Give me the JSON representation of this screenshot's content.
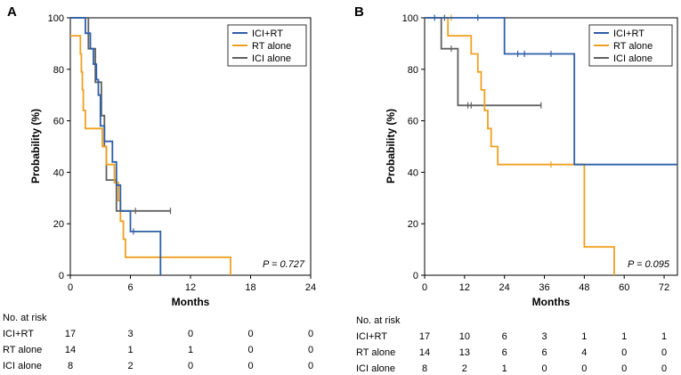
{
  "chart_data": [
    {
      "type": "line",
      "subtype": "kaplan-meier",
      "panel_label": "A",
      "ylabel": "Probability (%)",
      "xlabel": "Months",
      "xlim": [
        0,
        24
      ],
      "ylim": [
        0,
        100
      ],
      "x_ticks": [
        0,
        6,
        12,
        18,
        24
      ],
      "y_ticks": [
        0,
        20,
        40,
        60,
        80,
        100
      ],
      "p_value_prefix": "P = ",
      "p_value": "0.727",
      "legend": [
        "ICI+RT",
        "RT alone",
        "ICI alone"
      ],
      "series": [
        {
          "name": "ICI+RT",
          "color": "#2E5FA8",
          "steps": [
            [
              0,
              100
            ],
            [
              1.5,
              100
            ],
            [
              1.5,
              94
            ],
            [
              2,
              94
            ],
            [
              2,
              88
            ],
            [
              2.3,
              88
            ],
            [
              2.3,
              82
            ],
            [
              2.6,
              82
            ],
            [
              2.6,
              76
            ],
            [
              2.8,
              76
            ],
            [
              2.8,
              70
            ],
            [
              3,
              70
            ],
            [
              3,
              58
            ],
            [
              3.4,
              58
            ],
            [
              3.4,
              52
            ],
            [
              4.2,
              52
            ],
            [
              4.2,
              44
            ],
            [
              4.6,
              44
            ],
            [
              4.6,
              35
            ],
            [
              5,
              35
            ],
            [
              5,
              25
            ],
            [
              6,
              25
            ],
            [
              6,
              17
            ],
            [
              9,
              17
            ],
            [
              9,
              0
            ]
          ],
          "censor": [
            [
              6.3,
              17
            ]
          ]
        },
        {
          "name": "RT alone",
          "color": "#F0A020",
          "steps": [
            [
              0,
              93
            ],
            [
              1,
              93
            ],
            [
              1,
              86
            ],
            [
              1.1,
              86
            ],
            [
              1.1,
              79
            ],
            [
              1.2,
              79
            ],
            [
              1.2,
              72
            ],
            [
              1.3,
              72
            ],
            [
              1.3,
              64
            ],
            [
              1.5,
              64
            ],
            [
              1.5,
              57
            ],
            [
              3.2,
              57
            ],
            [
              3.2,
              50
            ],
            [
              3.6,
              50
            ],
            [
              3.6,
              43
            ],
            [
              4.4,
              43
            ],
            [
              4.4,
              36
            ],
            [
              4.8,
              36
            ],
            [
              4.8,
              29
            ],
            [
              5,
              29
            ],
            [
              5,
              21
            ],
            [
              5.3,
              21
            ],
            [
              5.3,
              14
            ],
            [
              5.5,
              14
            ],
            [
              5.5,
              7
            ],
            [
              16,
              7
            ],
            [
              16,
              0
            ]
          ],
          "censor": []
        },
        {
          "name": "ICI alone",
          "color": "#606060",
          "steps": [
            [
              0,
              100
            ],
            [
              1.8,
              100
            ],
            [
              1.8,
              88
            ],
            [
              2.5,
              88
            ],
            [
              2.5,
              75
            ],
            [
              3.1,
              75
            ],
            [
              3.1,
              62
            ],
            [
              3.4,
              62
            ],
            [
              3.4,
              50
            ],
            [
              3.6,
              50
            ],
            [
              3.6,
              37
            ],
            [
              4.6,
              37
            ],
            [
              4.6,
              25
            ],
            [
              10,
              25
            ]
          ],
          "censor": [
            [
              6.5,
              25
            ],
            [
              10,
              25
            ]
          ]
        }
      ],
      "risk_table": {
        "header": "No. at risk",
        "times": [
          0,
          6,
          12,
          18,
          24
        ],
        "rows": [
          {
            "label": "ICI+RT",
            "values": [
              "17",
              "3",
              "0",
              "0",
              "0"
            ]
          },
          {
            "label": "RT alone",
            "values": [
              "14",
              "1",
              "1",
              "0",
              "0"
            ]
          },
          {
            "label": "ICI alone",
            "values": [
              "8",
              "2",
              "0",
              "0",
              "0"
            ]
          }
        ]
      }
    },
    {
      "type": "line",
      "subtype": "kaplan-meier",
      "panel_label": "B",
      "ylabel": "Probability (%)",
      "xlabel": "Months",
      "xlim": [
        0,
        76
      ],
      "ylim": [
        0,
        100
      ],
      "x_ticks": [
        0,
        12,
        24,
        36,
        48,
        60,
        72
      ],
      "y_ticks": [
        0,
        20,
        40,
        60,
        80,
        100
      ],
      "p_value_prefix": "P = ",
      "p_value": "0.095",
      "legend": [
        "ICI+RT",
        "RT alone",
        "ICI alone"
      ],
      "series": [
        {
          "name": "ICI+RT",
          "color": "#2E5FA8",
          "steps": [
            [
              0,
              100
            ],
            [
              24,
              100
            ],
            [
              24,
              86
            ],
            [
              45,
              86
            ],
            [
              45,
              43
            ],
            [
              76,
              43
            ]
          ],
          "censor": [
            [
              3,
              100
            ],
            [
              16,
              100
            ],
            [
              28,
              86
            ],
            [
              30,
              86
            ],
            [
              38,
              86
            ]
          ]
        },
        {
          "name": "RT alone",
          "color": "#F0A020",
          "steps": [
            [
              0,
              100
            ],
            [
              7,
              100
            ],
            [
              7,
              93
            ],
            [
              14,
              93
            ],
            [
              14,
              86
            ],
            [
              16,
              86
            ],
            [
              16,
              79
            ],
            [
              17,
              79
            ],
            [
              17,
              72
            ],
            [
              18,
              72
            ],
            [
              18,
              64
            ],
            [
              19,
              64
            ],
            [
              19,
              57
            ],
            [
              20,
              57
            ],
            [
              20,
              50
            ],
            [
              22,
              50
            ],
            [
              22,
              43
            ],
            [
              48,
              43
            ],
            [
              48,
              11
            ],
            [
              57,
              11
            ],
            [
              57,
              0
            ]
          ],
          "censor": [
            [
              8,
              100
            ],
            [
              38,
              43
            ]
          ]
        },
        {
          "name": "ICI alone",
          "color": "#606060",
          "steps": [
            [
              0,
              100
            ],
            [
              5,
              100
            ],
            [
              5,
              88
            ],
            [
              10,
              88
            ],
            [
              10,
              66
            ],
            [
              35,
              66
            ]
          ],
          "censor": [
            [
              6,
              100
            ],
            [
              8,
              88
            ],
            [
              13,
              66
            ],
            [
              14,
              66
            ],
            [
              35,
              66
            ]
          ]
        }
      ],
      "risk_table": {
        "header": "No. at risk",
        "times": [
          0,
          12,
          24,
          36,
          48,
          60,
          72
        ],
        "rows": [
          {
            "label": "ICI+RT",
            "values": [
              "17",
              "10",
              "6",
              "3",
              "1",
              "1",
              "1"
            ]
          },
          {
            "label": "RT alone",
            "values": [
              "14",
              "13",
              "6",
              "6",
              "4",
              "0",
              "0"
            ]
          },
          {
            "label": "ICI alone",
            "values": [
              "8",
              "2",
              "1",
              "0",
              "0",
              "0",
              "0"
            ]
          }
        ]
      }
    }
  ]
}
